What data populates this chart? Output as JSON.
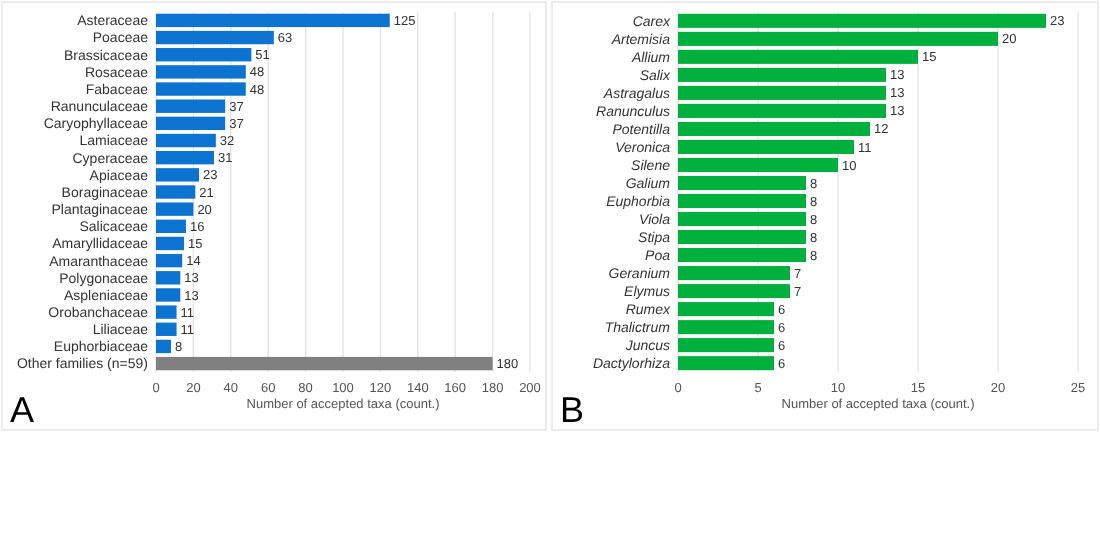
{
  "chart_data": [
    {
      "type": "bar",
      "orientation": "horizontal",
      "categories": [
        "Asteraceae",
        "Poaceae",
        "Brassicaceae",
        "Rosaceae",
        "Fabaceae",
        "Ranunculaceae",
        "Caryophyllaceae",
        "Lamiaceae",
        "Cyperaceae",
        "Apiaceae",
        "Boraginaceae",
        "Plantaginaceae",
        "Salicaceae",
        "Amaryllidaceae",
        "Amaranthaceae",
        "Polygonaceae",
        "Aspleniaceae",
        "Orobanchaceae",
        "Liliaceae",
        "Euphorbiaceae",
        "Other families (n=59)"
      ],
      "values": [
        125,
        63,
        51,
        48,
        48,
        37,
        37,
        32,
        31,
        23,
        21,
        20,
        16,
        15,
        14,
        13,
        13,
        11,
        11,
        8,
        180
      ],
      "colors": [
        "#0c73d0",
        "#0c73d0",
        "#0c73d0",
        "#0c73d0",
        "#0c73d0",
        "#0c73d0",
        "#0c73d0",
        "#0c73d0",
        "#0c73d0",
        "#0c73d0",
        "#0c73d0",
        "#0c73d0",
        "#0c73d0",
        "#0c73d0",
        "#0c73d0",
        "#0c73d0",
        "#0c73d0",
        "#0c73d0",
        "#0c73d0",
        "#0c73d0",
        "#808080"
      ],
      "xlim": [
        0,
        200
      ],
      "xticks": [
        0,
        20,
        40,
        60,
        80,
        100,
        120,
        140,
        160,
        180,
        200
      ],
      "xlabel": "Number of accepted taxa (count.)",
      "grid": "x",
      "data_labels": true,
      "annotations": [
        "A"
      ]
    },
    {
      "type": "bar",
      "orientation": "horizontal",
      "categories": [
        "Carex",
        "Artemisia",
        "Allium",
        "Salix",
        "Astragalus",
        "Ranunculus",
        "Potentilla",
        "Veronica",
        "Silene",
        "Galium",
        "Euphorbia",
        "Viola",
        "Stipa",
        "Poa",
        "Geranium",
        "Elymus",
        "Rumex",
        "Thalictrum",
        "Juncus",
        "Dactylorhiza"
      ],
      "values": [
        23,
        20,
        15,
        13,
        13,
        13,
        12,
        11,
        10,
        8,
        8,
        8,
        8,
        8,
        7,
        7,
        6,
        6,
        6,
        6
      ],
      "color": "#00b03c",
      "xlim": [
        0,
        25
      ],
      "xticks": [
        0,
        5,
        10,
        15,
        20,
        25
      ],
      "xlabel": "Number of accepted taxa (count.)",
      "grid": "x",
      "data_labels": true,
      "annotations": [
        "B"
      ]
    }
  ]
}
